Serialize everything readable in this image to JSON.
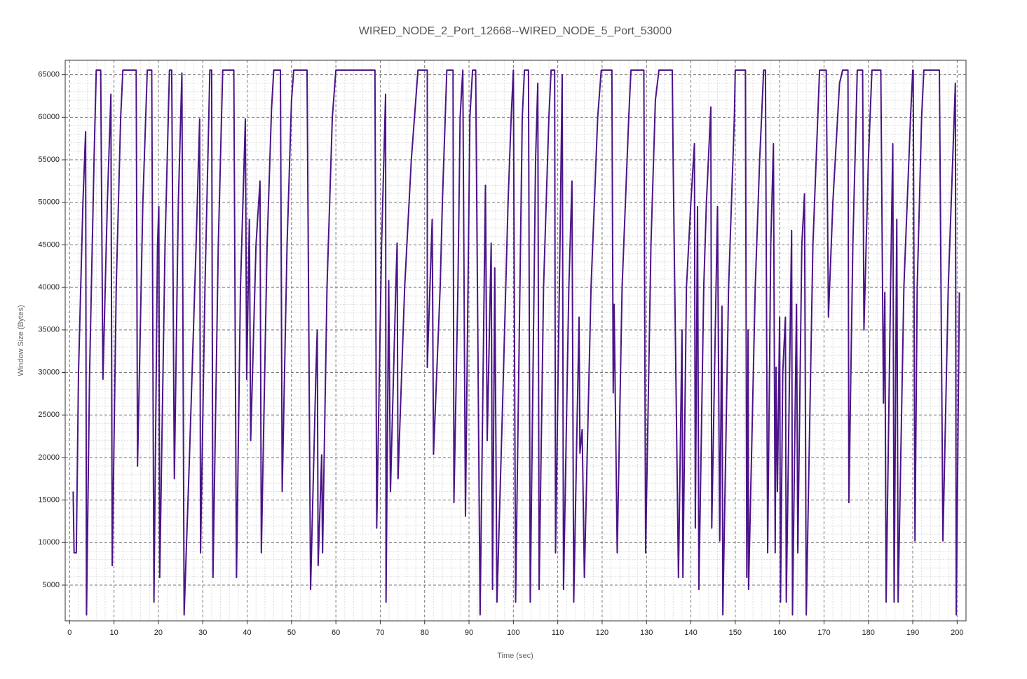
{
  "chart_data": {
    "type": "line",
    "title": "WIRED_NODE_2_Port_12668--WIRED_NODE_5_Port_53000",
    "x_label": "Time (sec)",
    "y_label": "Window Size (Bytes)",
    "color": "#4b1488",
    "grid": true,
    "xlim": [
      -1,
      202
    ],
    "ylim": [
      800,
      66700
    ],
    "xticks": [
      0,
      10,
      20,
      30,
      40,
      50,
      60,
      70,
      80,
      90,
      100,
      110,
      120,
      130,
      140,
      150,
      160,
      170,
      180,
      190,
      200
    ],
    "yticks": [
      5000,
      10000,
      15000,
      20000,
      25000,
      30000,
      35000,
      40000,
      45000,
      50000,
      55000,
      60000,
      65000
    ],
    "x": [
      0.8,
      1,
      1.5,
      2,
      3,
      3.6,
      3.8,
      4.5,
      5.5,
      6,
      7,
      7.5,
      8.5,
      9.3,
      9.6,
      10.5,
      11.5,
      12,
      15,
      15.3,
      16.5,
      17.5,
      18.5,
      19,
      19.8,
      20.1,
      20.3,
      21.5,
      22.5,
      23,
      23.6,
      24.5,
      25.3,
      25.8,
      27,
      28.5,
      29.3,
      29.5,
      30.5,
      31.6,
      32,
      32.3,
      33.5,
      34.5,
      37,
      37.6,
      38.5,
      39.6,
      39.9,
      40.5,
      40.8,
      42,
      42.9,
      43.2,
      44.5,
      45.5,
      46,
      47.5,
      47.9,
      49,
      50,
      50.5,
      53.5,
      54.3,
      55.5,
      55.8,
      56,
      56.8,
      57,
      58,
      59.2,
      60,
      68.8,
      69.2,
      70.3,
      71.2,
      71.3,
      71.9,
      72.3,
      73.5,
      73.8,
      74,
      75.5,
      76.5,
      77,
      78.5,
      80.6,
      80.6,
      81.7,
      82,
      83.5,
      84,
      85,
      86.4,
      86.6,
      87.5,
      88,
      88.6,
      89.2,
      90.2,
      90.8,
      91.5,
      92.5,
      93.7,
      94.1,
      95,
      95.3,
      95.8,
      96.3,
      97.5,
      98.8,
      99.5,
      100,
      100.5,
      102,
      102.5,
      103.4,
      103.8,
      105,
      105.5,
      105.8,
      106.8,
      108,
      108.5,
      109.3,
      109.5,
      110.5,
      111,
      111.3,
      112.5,
      113.2,
      113.6,
      114.8,
      115,
      115.5,
      116,
      117.5,
      119,
      119.8,
      122.2,
      122.5,
      122.7,
      123.4,
      124.5,
      126,
      126.5,
      129.4,
      129.8,
      131,
      132,
      132.8,
      135.8,
      136,
      137.2,
      138,
      138.2,
      139,
      140,
      140.8,
      141,
      141.5,
      141.8,
      142.9,
      143.5,
      144.5,
      144.7,
      146,
      146.5,
      147,
      147.2,
      148.5,
      149.8,
      150,
      152.3,
      152.6,
      152.9,
      153,
      154.5,
      155.5,
      156.4,
      156.8,
      157.3,
      158,
      158.6,
      159,
      159.2,
      159.5,
      160,
      160.2,
      160.7,
      161.3,
      161.5,
      162.7,
      162.9,
      163.8,
      164.1,
      165,
      165.6,
      166,
      167.5,
      169,
      170.5,
      171,
      172,
      173.5,
      174.2,
      175.4,
      175.6,
      176.5,
      177.5,
      178.7,
      179,
      180,
      180.8,
      182.8,
      183.4,
      183.7,
      184,
      185,
      185.5,
      185.8,
      186.4,
      186.7,
      188,
      189.5,
      190,
      190.1,
      190.5,
      191,
      192,
      192.5,
      196,
      196.8,
      198,
      199.6,
      199.8,
      200.5
    ],
    "values": [
      16000,
      8800,
      8800,
      30000,
      50000,
      58300,
      1500,
      30000,
      55000,
      65535,
      65535,
      29200,
      50000,
      62700,
      7300,
      40000,
      60000,
      65535,
      65535,
      19000,
      50000,
      65535,
      65535,
      3000,
      45000,
      49500,
      5900,
      45000,
      65535,
      65535,
      17500,
      50000,
      65200,
      1500,
      20000,
      45000,
      59800,
      8800,
      40000,
      65535,
      65535,
      5900,
      45000,
      65535,
      65535,
      5900,
      40000,
      59800,
      29200,
      48000,
      22000,
      45000,
      52500,
      8800,
      45000,
      61000,
      65535,
      65535,
      16000,
      45000,
      62000,
      65535,
      65535,
      4500,
      30000,
      35000,
      7300,
      20300,
      8800,
      40000,
      60000,
      65535,
      65535,
      11700,
      45000,
      62700,
      3000,
      40800,
      16000,
      40000,
      45200,
      17500,
      40000,
      50000,
      55000,
      65535,
      65535,
      30600,
      48000,
      20400,
      40000,
      50000,
      65535,
      65535,
      14700,
      40000,
      60000,
      65535,
      13100,
      60000,
      65535,
      65535,
      1500,
      52000,
      22000,
      45200,
      4500,
      42300,
      3000,
      25000,
      50000,
      60000,
      65535,
      3000,
      60000,
      65535,
      65535,
      3000,
      55000,
      64000,
      4500,
      40000,
      60000,
      65535,
      65535,
      8800,
      45000,
      65000,
      4500,
      40000,
      52500,
      3000,
      36500,
      20500,
      23300,
      5900,
      40000,
      60000,
      65535,
      65535,
      27600,
      38000,
      8800,
      40000,
      60000,
      65535,
      65535,
      8800,
      45000,
      62000,
      65535,
      65535,
      55000,
      5900,
      35000,
      5900,
      40000,
      50000,
      56900,
      11700,
      49500,
      4500,
      40000,
      50000,
      61200,
      11700,
      49500,
      10200,
      37800,
      1500,
      40000,
      60000,
      65535,
      65535,
      5900,
      35000,
      4500,
      40000,
      55000,
      65535,
      65535,
      8800,
      45000,
      56900,
      8800,
      30600,
      16000,
      36500,
      3000,
      30000,
      36500,
      3000,
      46700,
      1500,
      38000,
      8800,
      45000,
      51000,
      1500,
      45000,
      65535,
      65535,
      36500,
      50000,
      64000,
      65535,
      65535,
      14700,
      45000,
      65535,
      65535,
      35000,
      55000,
      65535,
      65535,
      26400,
      39400,
      3000,
      40000,
      56900,
      3000,
      48000,
      3000,
      40000,
      60000,
      65535,
      65535,
      10200,
      40000,
      60000,
      65535,
      65535,
      10200,
      40000,
      64000,
      1500,
      39400
    ]
  }
}
